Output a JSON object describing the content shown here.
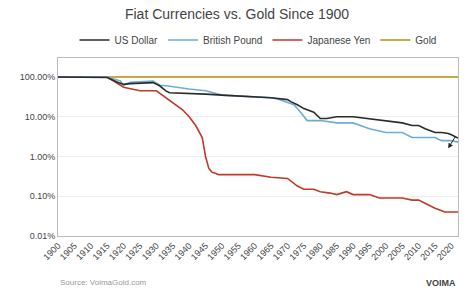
{
  "chart_data": {
    "type": "line",
    "title": "Fiat Currencies vs. Gold Since 1900",
    "log": "y",
    "grid": "y",
    "legend": "top",
    "series": [
      {
        "name": "Gold",
        "color": "#c8a84b",
        "x": [
          1900,
          2022
        ],
        "values": [
          100,
          100
        ]
      },
      {
        "name": "Japanese Yen",
        "color": "#c0392b",
        "x": [
          1900,
          1905,
          1910,
          1915,
          1920,
          1925,
          1930,
          1935,
          1938,
          1940,
          1942,
          1944,
          1945,
          1946,
          1947,
          1948,
          1949,
          1950,
          1955,
          1960,
          1965,
          1970,
          1973,
          1975,
          1978,
          1980,
          1983,
          1985,
          1988,
          1990,
          1993,
          1995,
          1998,
          2000,
          2003,
          2005,
          2008,
          2010,
          2013,
          2015,
          2018,
          2020,
          2022
        ],
        "values": [
          100,
          100,
          100,
          100,
          55,
          45,
          45,
          22,
          15,
          10,
          6,
          3,
          1,
          0.5,
          0.4,
          0.38,
          0.35,
          0.35,
          0.35,
          0.35,
          0.3,
          0.28,
          0.18,
          0.15,
          0.15,
          0.13,
          0.12,
          0.11,
          0.13,
          0.11,
          0.11,
          0.11,
          0.09,
          0.09,
          0.09,
          0.09,
          0.08,
          0.08,
          0.06,
          0.05,
          0.04,
          0.04,
          0.04
        ]
      },
      {
        "name": "British Pound",
        "color": "#6aaed6",
        "x": [
          1900,
          1905,
          1910,
          1915,
          1919,
          1920,
          1922,
          1925,
          1929,
          1931,
          1933,
          1940,
          1945,
          1950,
          1955,
          1960,
          1965,
          1967,
          1970,
          1972,
          1974,
          1976,
          1979,
          1980,
          1985,
          1990,
          1995,
          2000,
          2005,
          2008,
          2010,
          2012,
          2015,
          2017,
          2019,
          2020,
          2022
        ],
        "values": [
          100,
          100,
          100,
          100,
          80,
          62,
          73,
          76,
          79,
          62,
          60,
          50,
          45,
          35,
          33,
          31,
          30,
          28,
          23,
          20,
          13,
          8,
          8,
          8,
          7,
          7,
          5,
          4,
          4,
          3,
          3,
          3,
          3,
          2.5,
          2.5,
          2.5,
          2.3
        ]
      },
      {
        "name": "US Dollar",
        "color": "#2b2b2b",
        "x": [
          1900,
          1905,
          1910,
          1915,
          1918,
          1920,
          1922,
          1925,
          1929,
          1931,
          1933,
          1934,
          1940,
          1945,
          1950,
          1955,
          1960,
          1965,
          1970,
          1971,
          1973,
          1975,
          1978,
          1980,
          1982,
          1985,
          1990,
          1995,
          2000,
          2005,
          2008,
          2010,
          2012,
          2015,
          2017,
          2019,
          2020,
          2022
        ],
        "values": [
          100,
          100,
          100,
          97,
          75,
          65,
          68,
          70,
          72,
          60,
          44,
          40,
          39,
          37,
          35,
          33,
          31,
          30,
          27,
          24,
          20,
          16,
          13,
          9,
          9,
          10,
          10,
          9,
          8,
          7,
          6,
          6,
          5,
          4,
          4,
          3.8,
          3.5,
          2.9
        ]
      }
    ],
    "xlim": [
      1900,
      2022
    ],
    "xticks": [
      1900,
      1905,
      1910,
      1915,
      1920,
      1925,
      1930,
      1935,
      1940,
      1945,
      1950,
      1955,
      1960,
      1965,
      1970,
      1975,
      1980,
      1985,
      1990,
      1995,
      2000,
      2005,
      2010,
      2015,
      2020
    ],
    "ylim": [
      0.01,
      300
    ],
    "yticks": [
      {
        "value": 0.01,
        "label": "0.01%"
      },
      {
        "value": 0.1,
        "label": "0.10%"
      },
      {
        "value": 1,
        "label": "1.00%"
      },
      {
        "value": 10,
        "label": "10.00%"
      },
      {
        "value": 100,
        "label": "100.00%"
      }
    ],
    "arrow": {
      "x": 2019,
      "y": 1.6,
      "from_x": 2021.5,
      "from_y": 3.5
    },
    "source": "Source: VoimaGold.com",
    "watermark": "VOIMA"
  }
}
